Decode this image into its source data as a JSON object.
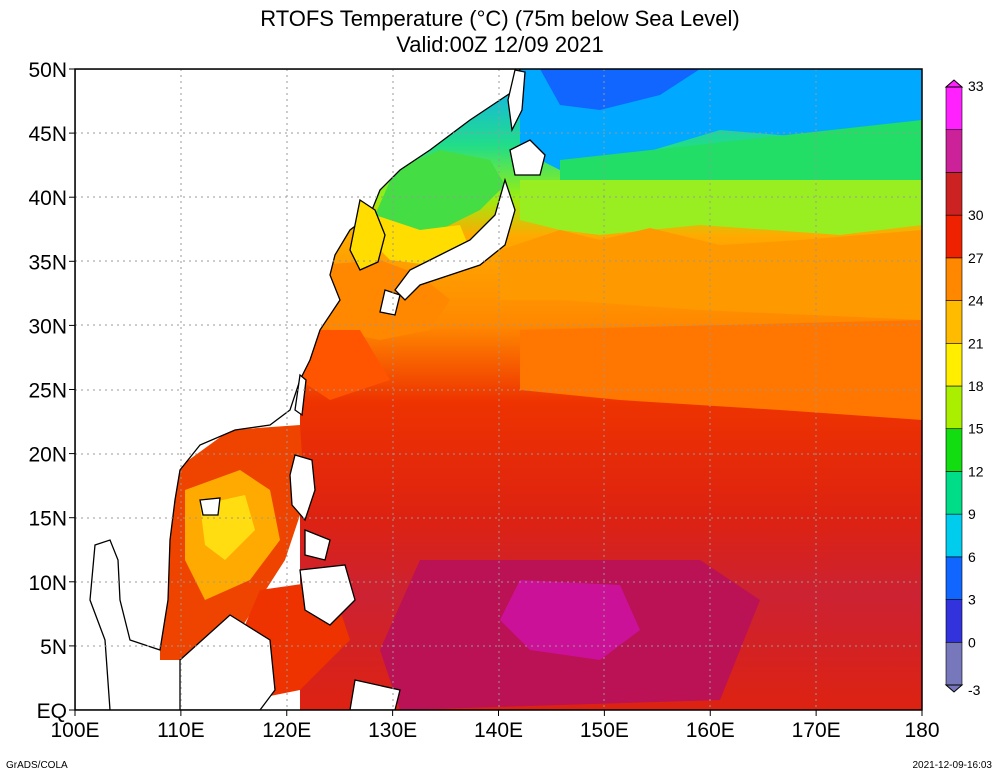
{
  "title_line1": "RTOFS Temperature (°C) (75m below Sea Level)",
  "title_line2": "Valid:00Z 12/09 2021",
  "footer_left": "GrADS/COLA",
  "footer_right": "2021-12-09-16:03",
  "map": {
    "lon_range": [
      100,
      180
    ],
    "lat_range": [
      0,
      50
    ],
    "x_tick_labels": [
      "100E",
      "110E",
      "120E",
      "130E",
      "140E",
      "150E",
      "160E",
      "170E",
      "180"
    ],
    "y_tick_labels": [
      "EQ",
      "5N",
      "10N",
      "15N",
      "20N",
      "25N",
      "30N",
      "35N",
      "40N",
      "45N",
      "50N"
    ],
    "gridlines": "dotted"
  },
  "colorbar": {
    "labels": [
      "-3",
      "0",
      "3",
      "6",
      "9",
      "12",
      "15",
      "18",
      "21",
      "24",
      "27",
      "30",
      "33"
    ],
    "colors": [
      "#7777bb",
      "#3333dd",
      "#1166ff",
      "#00ccee",
      "#00dd88",
      "#11dd11",
      "#aaee00",
      "#ffee00",
      "#ffbb00",
      "#ff8800",
      "#ee2200",
      "#cc2222",
      "#cc2299",
      "#ff22ff"
    ]
  }
}
